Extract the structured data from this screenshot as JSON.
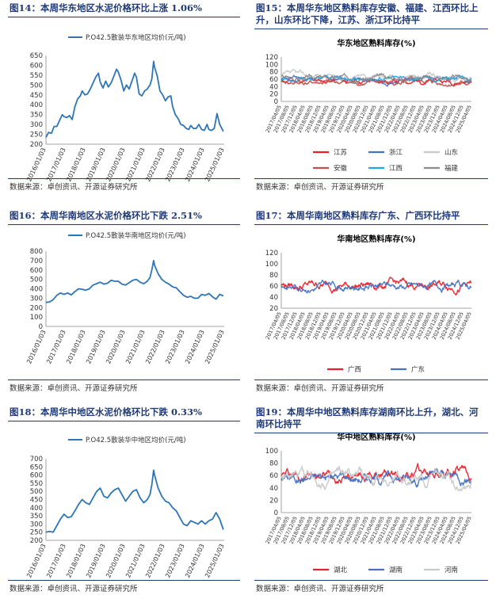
{
  "panels": [
    {
      "id": "fig14",
      "caption": "图14：本周华东地区水泥价格环比上涨 1.06%",
      "source": "数据来源：卓创资讯、开源证券研究所",
      "chart_data": {
        "type": "line",
        "title": "",
        "legend_position": "top",
        "ylim": [
          200,
          650
        ],
        "yticks": [
          200,
          250,
          300,
          350,
          400,
          450,
          500,
          550,
          600,
          650
        ],
        "x_range": [
          "2016/01/03",
          "2025/10/31"
        ],
        "xtick_labels": [
          "2016/01/03",
          "2017/01/03",
          "2018/01/03",
          "2019/01/03",
          "2020/01/03",
          "2021/01/03",
          "2022/01/03",
          "2023/01/03",
          "2024/01/03",
          "2025/01/03"
        ],
        "series": [
          {
            "name": "P.O42.5散装华东地区均价(元/吨)",
            "color": "#2e75b6",
            "x": [
              2016.0,
              2016.15,
              2016.3,
              2016.45,
              2016.6,
              2016.75,
              2016.9,
              2017.0,
              2017.15,
              2017.3,
              2017.45,
              2017.6,
              2017.75,
              2017.9,
              2018.0,
              2018.15,
              2018.3,
              2018.45,
              2018.6,
              2018.75,
              2018.9,
              2019.0,
              2019.15,
              2019.3,
              2019.45,
              2019.6,
              2019.75,
              2019.9,
              2020.0,
              2020.15,
              2020.3,
              2020.45,
              2020.6,
              2020.75,
              2020.9,
              2021.0,
              2021.15,
              2021.3,
              2021.45,
              2021.6,
              2021.75,
              2021.85,
              2021.95,
              2022.0,
              2022.15,
              2022.3,
              2022.45,
              2022.6,
              2022.75,
              2022.9,
              2023.0,
              2023.15,
              2023.3,
              2023.45,
              2023.6,
              2023.75,
              2023.9,
              2024.0,
              2024.15,
              2024.3,
              2024.45,
              2024.6,
              2024.75,
              2024.9,
              2025.0,
              2025.15,
              2025.3,
              2025.45,
              2025.6,
              2025.8
            ],
            "y": [
              235,
              260,
              255,
              290,
              290,
              320,
              350,
              340,
              335,
              345,
              325,
              390,
              430,
              445,
              470,
              450,
              455,
              480,
              510,
              540,
              560,
              515,
              485,
              520,
              490,
              510,
              545,
              580,
              565,
              525,
              470,
              500,
              480,
              520,
              560,
              540,
              455,
              445,
              470,
              480,
              500,
              530,
              620,
              590,
              545,
              470,
              450,
              420,
              440,
              445,
              390,
              350,
              330,
              300,
              295,
              280,
              275,
              295,
              280,
              280,
              300,
              275,
              270,
              300,
              275,
              270,
              280,
              355,
              300,
              265
            ]
          }
        ]
      }
    },
    {
      "id": "fig15",
      "caption_lines": [
        "图15：本周华东地区熟料库存安徽、福建、江西环比上",
        "升，山东环比下降，江苏、浙江环比持平"
      ],
      "source": "数据来源：卓创资讯、开源证券研究所",
      "chart_data": {
        "type": "line",
        "title": "华东地区熟料库存(%)",
        "legend_position": "bottom",
        "ylim": [
          0,
          120
        ],
        "yticks": [
          0,
          20,
          40,
          60,
          80,
          100,
          120
        ],
        "xtick_labels": [
          "2017/04/05",
          "2017/08/05",
          "2017/12/05",
          "2018/04/05",
          "2018/08/05",
          "2018/12/05",
          "2019/04/05",
          "2019/08/05",
          "2019/12/05",
          "2020/04/05",
          "2020/08/05",
          "2020/12/05",
          "2021/04/05",
          "2021/08/05",
          "2021/12/05",
          "2022/04/05",
          "2022/08/05",
          "2022/12/05",
          "2023/04/05",
          "2023/08/05",
          "2023/12/05",
          "2024/04/05",
          "2024/08/05",
          "2024/12/05",
          "2025/04/05"
        ],
        "series": [
          {
            "name": "江苏",
            "color": "#e8202a",
            "center": 55,
            "amp": 14,
            "seed": 11
          },
          {
            "name": "浙江",
            "color": "#4472c4",
            "center": 60,
            "amp": 13,
            "seed": 23
          },
          {
            "name": "山东",
            "color": "#c8c8c8",
            "center": 68,
            "amp": 16,
            "seed": 37
          },
          {
            "name": "安徽",
            "color": "#c0504d",
            "center": 50,
            "amp": 14,
            "seed": 41
          },
          {
            "name": "江西",
            "color": "#1fa5e0",
            "center": 62,
            "amp": 12,
            "seed": 53
          },
          {
            "name": "福建",
            "color": "#8c8c8c",
            "center": 65,
            "amp": 14,
            "seed": 67
          }
        ]
      }
    },
    {
      "id": "fig16",
      "caption": "图16：本周华南地区水泥价格环比下跌 2.51%",
      "source": "数据来源：卓创资讯、开源证券研究所",
      "chart_data": {
        "type": "line",
        "title": "",
        "legend_position": "top",
        "ylim": [
          0,
          800
        ],
        "yticks": [
          0,
          100,
          200,
          300,
          400,
          500,
          600,
          700,
          800
        ],
        "x_range": [
          "2016/01/03",
          "2025/10/31"
        ],
        "xtick_labels": [
          "2016/01/03",
          "2017/01/03",
          "2018/01/03",
          "2019/01/03",
          "2020/01/03",
          "2021/01/03",
          "2022/01/03",
          "2023/01/03",
          "2024/01/03",
          "2025/01/03"
        ],
        "series": [
          {
            "name": "P.O42.5散装华南地区均价(元/吨)",
            "color": "#2e75b6",
            "x": [
              2016.0,
              2016.2,
              2016.4,
              2016.6,
              2016.8,
              2017.0,
              2017.2,
              2017.4,
              2017.6,
              2017.8,
              2018.0,
              2018.2,
              2018.4,
              2018.6,
              2018.8,
              2019.0,
              2019.2,
              2019.4,
              2019.6,
              2019.8,
              2020.0,
              2020.2,
              2020.4,
              2020.6,
              2020.8,
              2021.0,
              2021.2,
              2021.4,
              2021.6,
              2021.75,
              2021.85,
              2021.95,
              2022.0,
              2022.2,
              2022.4,
              2022.6,
              2022.8,
              2023.0,
              2023.2,
              2023.4,
              2023.6,
              2023.8,
              2024.0,
              2024.2,
              2024.4,
              2024.6,
              2024.8,
              2025.0,
              2025.2,
              2025.4,
              2025.6,
              2025.8
            ],
            "y": [
              255,
              260,
              285,
              330,
              355,
              340,
              355,
              335,
              370,
              400,
              395,
              385,
              400,
              440,
              455,
              470,
              450,
              460,
              490,
              480,
              480,
              450,
              440,
              465,
              490,
              500,
              470,
              455,
              480,
              520,
              600,
              700,
              650,
              560,
              500,
              470,
              450,
              420,
              410,
              370,
              330,
              310,
              320,
              300,
              300,
              340,
              330,
              350,
              315,
              290,
              340,
              325
            ]
          }
        ]
      }
    },
    {
      "id": "fig17",
      "caption": "图17：本周华南地区熟料库存广东、广西环比持平",
      "source": "数据来源：卓创资讯、开源证券研究所",
      "chart_data": {
        "type": "line",
        "title": "华南地区熟料库存(%)",
        "legend_position": "bottom",
        "ylim": [
          20,
          120
        ],
        "yticks": [
          20,
          40,
          60,
          80,
          100,
          120
        ],
        "xtick_labels": [
          "2017/04/05",
          "2017/08/05",
          "2017/12/05",
          "2018/04/05",
          "2018/08/05",
          "2018/12/05",
          "2019/04/05",
          "2019/08/05",
          "2019/12/05",
          "2020/04/05",
          "2020/08/05",
          "2020/12/05",
          "2021/04/05",
          "2021/08/05",
          "2021/12/05",
          "2022/04/05",
          "2022/08/05",
          "2022/12/05",
          "2023/04/05",
          "2023/08/05",
          "2023/12/05",
          "2024/04/05",
          "2024/08/05",
          "2024/12/05",
          "2025/04/05"
        ],
        "series": [
          {
            "name": "广西",
            "color": "#e8202a",
            "center": 62,
            "amp": 16,
            "seed": 79
          },
          {
            "name": "广东",
            "color": "#4472c4",
            "center": 60,
            "amp": 14,
            "seed": 83
          }
        ]
      }
    },
    {
      "id": "fig18",
      "caption": "图18：本周华中地区水泥价格环比下跌 0.33%",
      "source": "数据来源：卓创资讯、开源证券研究所",
      "chart_data": {
        "type": "line",
        "title": "",
        "legend_position": "top",
        "ylim": [
          200,
          700
        ],
        "yticks": [
          200,
          250,
          300,
          350,
          400,
          450,
          500,
          550,
          600,
          650,
          700
        ],
        "x_range": [
          "2016/01/03",
          "2025/10/31"
        ],
        "xtick_labels": [
          "2016/01/03",
          "2017/01/03",
          "2018/01/03",
          "2019/01/03",
          "2020/01/03",
          "2021/01/03",
          "2022/01/03",
          "2023/01/03",
          "2024/01/03",
          "2025/01/03"
        ],
        "series": [
          {
            "name": "P.O42.5散装华中地区均价(元/吨)",
            "color": "#2e75b6",
            "x": [
              2016.0,
              2016.2,
              2016.4,
              2016.6,
              2016.8,
              2017.0,
              2017.2,
              2017.4,
              2017.6,
              2017.8,
              2018.0,
              2018.2,
              2018.4,
              2018.6,
              2018.8,
              2019.0,
              2019.2,
              2019.4,
              2019.6,
              2019.8,
              2020.0,
              2020.2,
              2020.4,
              2020.6,
              2020.8,
              2021.0,
              2021.2,
              2021.4,
              2021.6,
              2021.75,
              2021.85,
              2021.95,
              2022.0,
              2022.2,
              2022.4,
              2022.6,
              2022.8,
              2023.0,
              2023.2,
              2023.4,
              2023.6,
              2023.8,
              2024.0,
              2024.2,
              2024.4,
              2024.6,
              2024.8,
              2025.0,
              2025.2,
              2025.4,
              2025.6,
              2025.8
            ],
            "y": [
              250,
              255,
              250,
              290,
              330,
              360,
              340,
              345,
              380,
              420,
              450,
              430,
              420,
              460,
              500,
              520,
              470,
              460,
              490,
              510,
              520,
              480,
              440,
              470,
              500,
              510,
              460,
              430,
              450,
              480,
              540,
              630,
              600,
              520,
              470,
              440,
              430,
              400,
              380,
              340,
              300,
              290,
              320,
              310,
              300,
              320,
              300,
              320,
              330,
              370,
              330,
              265
            ]
          }
        ]
      }
    },
    {
      "id": "fig19",
      "caption_lines": [
        "图19：本周华中地区熟料库存湖南环比上升，湖北、河",
        "南环比持平"
      ],
      "source": "数据来源：卓创资讯、开源证券研究所",
      "chart_data": {
        "type": "line",
        "title": "华中地区熟料库存(%)",
        "legend_position": "bottom",
        "ylim": [
          0,
          100
        ],
        "yticks": [
          0,
          20,
          40,
          60,
          80,
          100
        ],
        "xtick_labels": [
          "2017/04/05",
          "2017/08/05",
          "2017/12/05",
          "2018/04/05",
          "2018/08/05",
          "2018/12/05",
          "2019/04/05",
          "2019/08/05",
          "2019/12/05",
          "2020/04/05",
          "2020/08/05",
          "2020/12/05",
          "2021/04/05",
          "2021/08/05",
          "2021/12/05",
          "2022/04/05",
          "2022/08/05",
          "2022/12/05",
          "2023/04/05",
          "2023/08/05",
          "2023/12/05",
          "2024/04/05",
          "2024/08/05",
          "2024/12/05",
          "2025/04/05"
        ],
        "series": [
          {
            "name": "湖北",
            "color": "#e8202a",
            "center": 62,
            "amp": 18,
            "seed": 97
          },
          {
            "name": "湖南",
            "color": "#4472c4",
            "center": 58,
            "amp": 18,
            "seed": 101
          },
          {
            "name": "河南",
            "color": "#c8c8c8",
            "center": 55,
            "amp": 22,
            "seed": 109
          }
        ]
      }
    }
  ]
}
